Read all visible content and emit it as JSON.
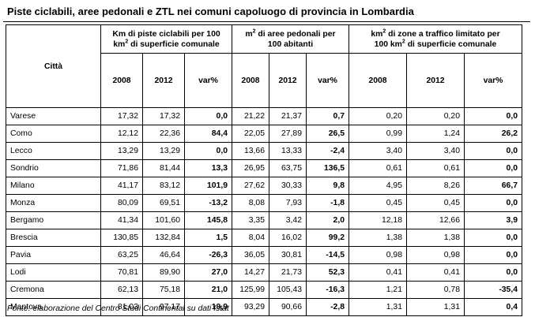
{
  "title": "Piste ciclabili, aree pedonali e ZTL nei comuni capoluogo di provincia in Lombardia",
  "headers": {
    "city": "Città",
    "group1_a": "Km di piste ciclabili per 100",
    "group1_b": "km",
    "group1_sup": "2",
    "group1_c": " di superficie comunale",
    "group2_a": "m",
    "group2_sup": "2",
    "group2_b": " di aree pedonali per",
    "group2_c": "100 abitanti",
    "group3_a": "km",
    "group3_sup": "2",
    "group3_b": " di zone a traffico limitato per",
    "group3_c": "100 km",
    "group3_sup2": "2",
    "group3_d": " di superficie comunale",
    "y2008": "2008",
    "y2012": "2012",
    "var": "var%"
  },
  "rows": [
    {
      "city": "Varese",
      "c1": "17,32",
      "c2": "17,32",
      "c3": "0,0",
      "p1": "21,22",
      "p2": "21,37",
      "p3": "0,7",
      "z1": "0,20",
      "z2": "0,20",
      "z3": "0,0"
    },
    {
      "city": "Como",
      "c1": "12,12",
      "c2": "22,36",
      "c3": "84,4",
      "p1": "22,05",
      "p2": "27,89",
      "p3": "26,5",
      "z1": "0,99",
      "z2": "1,24",
      "z3": "26,2"
    },
    {
      "city": "Lecco",
      "c1": "13,29",
      "c2": "13,29",
      "c3": "0,0",
      "p1": "13,66",
      "p2": "13,33",
      "p3": "-2,4",
      "z1": "3,40",
      "z2": "3,40",
      "z3": "0,0"
    },
    {
      "city": "Sondrio",
      "c1": "71,86",
      "c2": "81,44",
      "c3": "13,3",
      "p1": "26,95",
      "p2": "63,75",
      "p3": "136,5",
      "z1": "0,61",
      "z2": "0,61",
      "z3": "0,0"
    },
    {
      "city": "Milano",
      "c1": "41,17",
      "c2": "83,12",
      "c3": "101,9",
      "p1": "27,62",
      "p2": "30,33",
      "p3": "9,8",
      "z1": "4,95",
      "z2": "8,26",
      "z3": "66,7"
    },
    {
      "city": "Monza",
      "c1": "80,09",
      "c2": "69,51",
      "c3": "-13,2",
      "p1": "8,08",
      "p2": "7,93",
      "p3": "-1,8",
      "z1": "0,45",
      "z2": "0,45",
      "z3": "0,0"
    },
    {
      "city": "Bergamo",
      "c1": "41,34",
      "c2": "101,60",
      "c3": "145,8",
      "p1": "3,35",
      "p2": "3,42",
      "p3": "2,0",
      "z1": "12,18",
      "z2": "12,66",
      "z3": "3,9"
    },
    {
      "city": "Brescia",
      "c1": "130,85",
      "c2": "132,84",
      "c3": "1,5",
      "p1": "8,04",
      "p2": "16,02",
      "p3": "99,2",
      "z1": "1,38",
      "z2": "1,38",
      "z3": "0,0"
    },
    {
      "city": "Pavia",
      "c1": "63,25",
      "c2": "46,64",
      "c3": "-26,3",
      "p1": "36,05",
      "p2": "30,81",
      "p3": "-14,5",
      "z1": "0,98",
      "z2": "0,98",
      "z3": "0,0"
    },
    {
      "city": "Lodi",
      "c1": "70,81",
      "c2": "89,90",
      "c3": "27,0",
      "p1": "14,27",
      "p2": "21,73",
      "p3": "52,3",
      "z1": "0,41",
      "z2": "0,41",
      "z3": "0,0"
    },
    {
      "city": "Cremona",
      "c1": "62,13",
      "c2": "75,18",
      "c3": "21,0",
      "p1": "125,99",
      "p2": "105,43",
      "p3": "-16,3",
      "z1": "1,21",
      "z2": "0,78",
      "z3": "-35,4"
    },
    {
      "city": "Mantova",
      "c1": "81,03",
      "c2": "97,17",
      "c3": "19,9",
      "p1": "93,29",
      "p2": "90,66",
      "p3": "-2,8",
      "z1": "1,31",
      "z2": "1,31",
      "z3": "0,4"
    }
  ],
  "footer": "Fonte: elaborazione del Centro Studi Continental su dati Istat"
}
